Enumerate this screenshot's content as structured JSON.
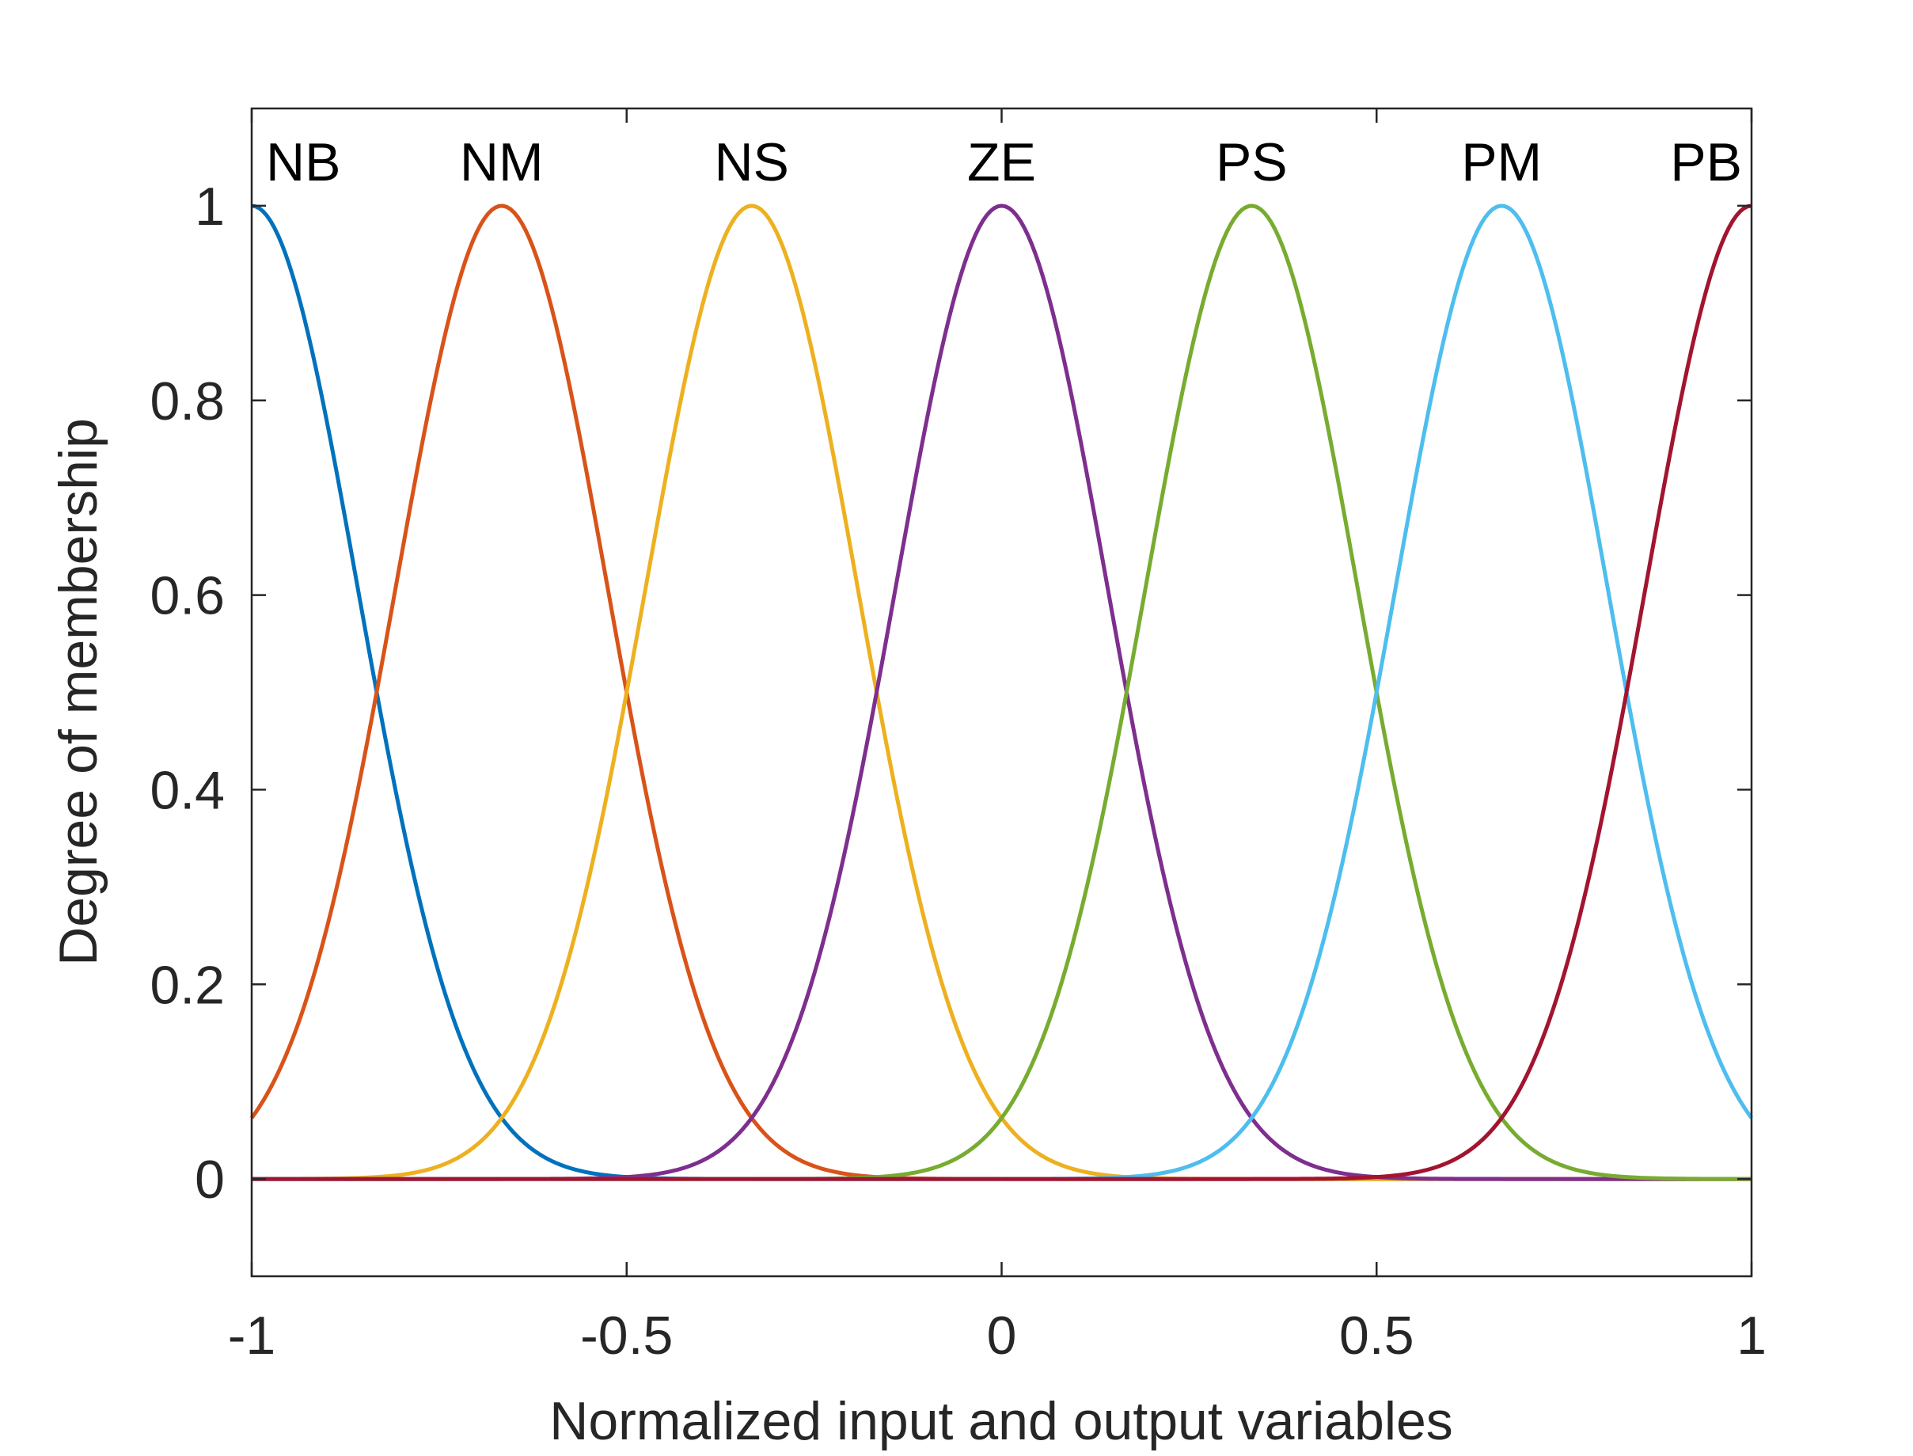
{
  "chart_data": {
    "type": "line",
    "title": "",
    "xlabel": "Normalized input and output variables",
    "ylabel": "Degree of membership",
    "xlim": [
      -1,
      1
    ],
    "ylim": [
      -0.1,
      1.1
    ],
    "x_ticks": [
      -1,
      -0.5,
      0,
      0.5,
      1
    ],
    "x_tick_labels": [
      "-1",
      "-0.5",
      "0",
      "0.5",
      "1"
    ],
    "y_ticks": [
      0,
      0.2,
      0.4,
      0.6,
      0.8,
      1
    ],
    "y_tick_labels": [
      "0",
      "0.2",
      "0.4",
      "0.6",
      "0.8",
      "1"
    ],
    "grid": false,
    "legend": "none",
    "membership_function": "gaussian",
    "series": [
      {
        "name": "NB",
        "center": -1.0,
        "sigma": 0.1416,
        "color": "#0072BD"
      },
      {
        "name": "NM",
        "center": -0.6667,
        "sigma": 0.1416,
        "color": "#D95319"
      },
      {
        "name": "NS",
        "center": -0.3333,
        "sigma": 0.1416,
        "color": "#EDB120"
      },
      {
        "name": "ZE",
        "center": 0.0,
        "sigma": 0.1416,
        "color": "#7E2F8E"
      },
      {
        "name": "PS",
        "center": 0.3333,
        "sigma": 0.1416,
        "color": "#77AC30"
      },
      {
        "name": "PM",
        "center": 0.6667,
        "sigma": 0.1416,
        "color": "#4DBEEE"
      },
      {
        "name": "PB",
        "center": 1.0,
        "sigma": 0.1416,
        "color": "#A2142F"
      }
    ]
  }
}
